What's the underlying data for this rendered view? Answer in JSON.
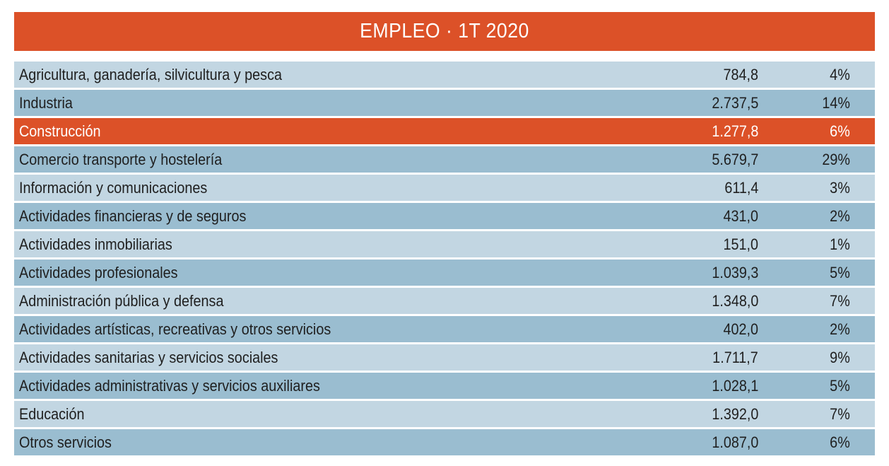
{
  "colors": {
    "accent": "#dc5128",
    "row_light": "#c2d6e2",
    "row_dark": "#9abdd0",
    "text": "#1f1f1f"
  },
  "chart_data": {
    "type": "table",
    "title": "EMPLEO · 1T 2020",
    "columns": [
      "",
      "",
      ""
    ],
    "rows": [
      {
        "sector": "Agricultura, ganadería, silvicultura y pesca",
        "value": "784,8",
        "share": "4%",
        "highlight": false
      },
      {
        "sector": "Industria",
        "value": "2.737,5",
        "share": "14%",
        "highlight": false
      },
      {
        "sector": "Construcción",
        "value": "1.277,8",
        "share": "6%",
        "highlight": true
      },
      {
        "sector": "Comercio transporte y hostelería",
        "value": "5.679,7",
        "share": "29%",
        "highlight": false
      },
      {
        "sector": "Información y comunicaciones",
        "value": "611,4",
        "share": "3%",
        "highlight": false
      },
      {
        "sector": "Actividades financieras y de seguros",
        "value": "431,0",
        "share": "2%",
        "highlight": false
      },
      {
        "sector": "Actividades inmobiliarias",
        "value": "151,0",
        "share": "1%",
        "highlight": false
      },
      {
        "sector": "Actividades profesionales",
        "value": "1.039,3",
        "share": "5%",
        "highlight": false
      },
      {
        "sector": "Administración pública y defensa",
        "value": "1.348,0",
        "share": "7%",
        "highlight": false
      },
      {
        "sector": "Actividades artísticas, recreativas y otros servicios",
        "value": "402,0",
        "share": "2%",
        "highlight": false
      },
      {
        "sector": "Actividades sanitarias y servicios sociales",
        "value": "1.711,7",
        "share": "9%",
        "highlight": false
      },
      {
        "sector": "Actividades administrativas  y servicios auxiliares",
        "value": "1.028,1",
        "share": "5%",
        "highlight": false
      },
      {
        "sector": "Educación",
        "value": "1.392,0",
        "share": "7%",
        "highlight": false
      },
      {
        "sector": "Otros servicios",
        "value": "1.087,0",
        "share": "6%",
        "highlight": false
      }
    ]
  }
}
